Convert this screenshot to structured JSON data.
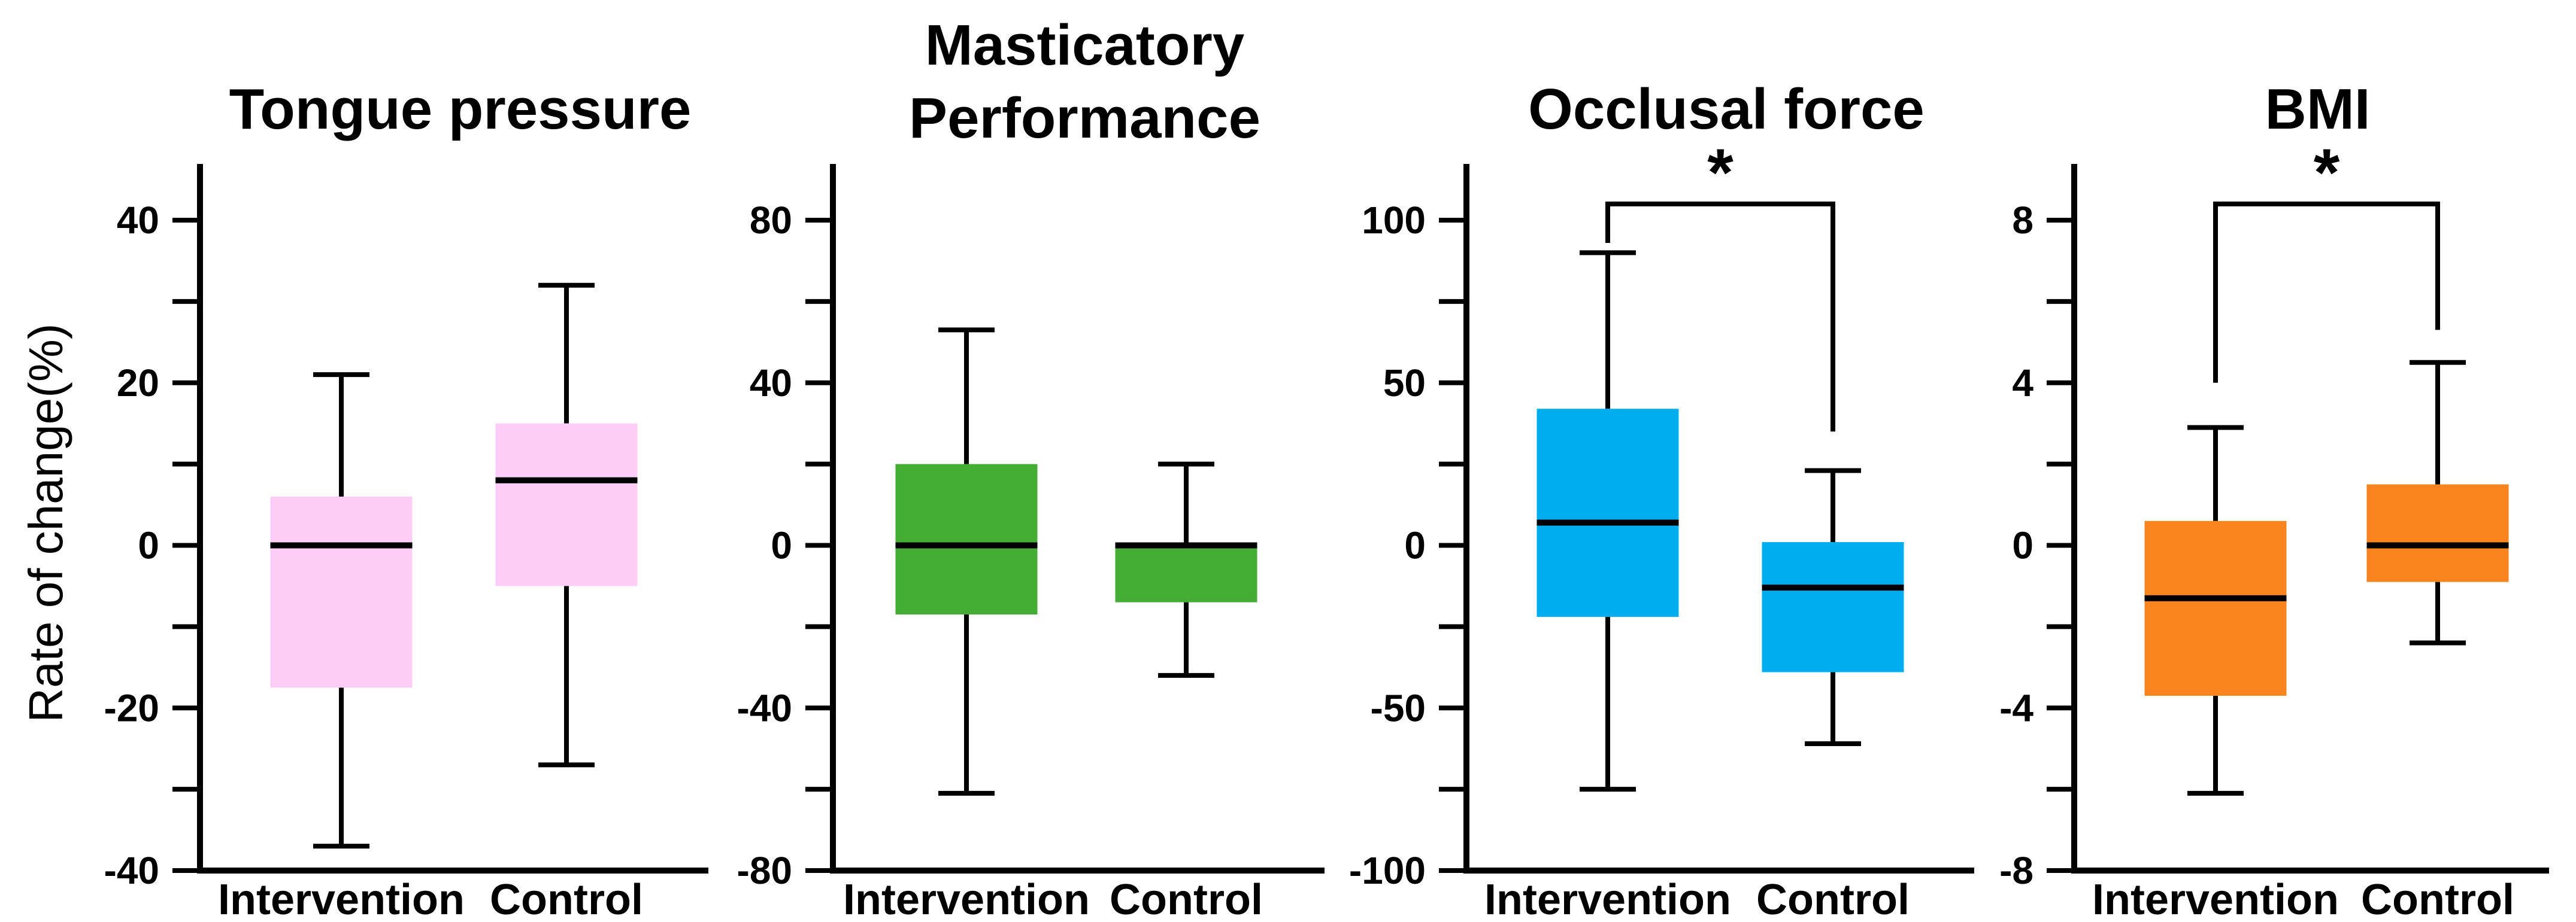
{
  "figure": {
    "ylabel": "Rate of change(%)",
    "background": "#ffffff",
    "axis_color": "#000000"
  },
  "chart_data": [
    {
      "type": "boxplot",
      "title": "Tongue pressure",
      "title_lines": [
        "Tongue pressure"
      ],
      "box_color": "#fccdf7",
      "categories": [
        "Intervention",
        "Control"
      ],
      "ymin": -40,
      "ymax": 40,
      "tick_step": 10,
      "labeled_ticks": [
        40,
        20,
        0,
        -20,
        -40
      ],
      "series": [
        {
          "name": "Intervention",
          "whisker_low": -37,
          "q1": -17.5,
          "median": 0,
          "q3": 6,
          "whisker_high": 21
        },
        {
          "name": "Control",
          "whisker_low": -27,
          "q1": -5,
          "median": 8,
          "q3": 15,
          "whisker_high": 32
        }
      ],
      "significance": null
    },
    {
      "type": "boxplot",
      "title": "Masticatory Performance",
      "title_lines": [
        "Masticatory",
        "Performance"
      ],
      "box_color": "#45ac35",
      "categories": [
        "Intervention",
        "Control"
      ],
      "ymin": -80,
      "ymax": 80,
      "tick_step": 20,
      "labeled_ticks": [
        80,
        40,
        0,
        -40,
        -80
      ],
      "series": [
        {
          "name": "Intervention",
          "whisker_low": -61,
          "q1": -17,
          "median": 0,
          "q3": 20,
          "whisker_high": 53
        },
        {
          "name": "Control",
          "whisker_low": -32,
          "q1": -14,
          "median": 0,
          "q3": 0,
          "whisker_high": 20
        }
      ],
      "significance": null
    },
    {
      "type": "boxplot",
      "title": "Occlusal force",
      "title_lines": [
        "Occlusal force"
      ],
      "box_color": "#00aeef",
      "categories": [
        "Intervention",
        "Control"
      ],
      "ymin": -100,
      "ymax": 100,
      "tick_step": 25,
      "labeled_ticks": [
        100,
        50,
        0,
        -50,
        -100
      ],
      "series": [
        {
          "name": "Intervention",
          "whisker_low": -75,
          "q1": -22,
          "median": 7,
          "q3": 42,
          "whisker_high": 90
        },
        {
          "name": "Control",
          "whisker_low": -61,
          "q1": -39,
          "median": -13,
          "q3": 1,
          "whisker_high": 23
        }
      ],
      "significance": {
        "label": "*",
        "bar_value": 105,
        "left_drop_to": 93,
        "right_drop_to": 35
      }
    },
    {
      "type": "boxplot",
      "title": "BMI",
      "title_lines": [
        "BMI"
      ],
      "box_color": "#f9831d",
      "categories": [
        "Intervention",
        "Control"
      ],
      "ymin": -8,
      "ymax": 8,
      "tick_step": 2,
      "labeled_ticks": [
        8,
        4,
        0,
        -4,
        -8
      ],
      "series": [
        {
          "name": "Intervention",
          "whisker_low": -6.1,
          "q1": -3.7,
          "median": -1.3,
          "q3": 0.6,
          "whisker_high": 2.9
        },
        {
          "name": "Control",
          "whisker_low": -2.4,
          "q1": -0.9,
          "median": 0,
          "q3": 1.5,
          "whisker_high": 4.5
        }
      ],
      "significance": {
        "label": "*",
        "bar_value": 8.4,
        "left_drop_to": 4.0,
        "right_drop_to": 5.3
      }
    }
  ]
}
